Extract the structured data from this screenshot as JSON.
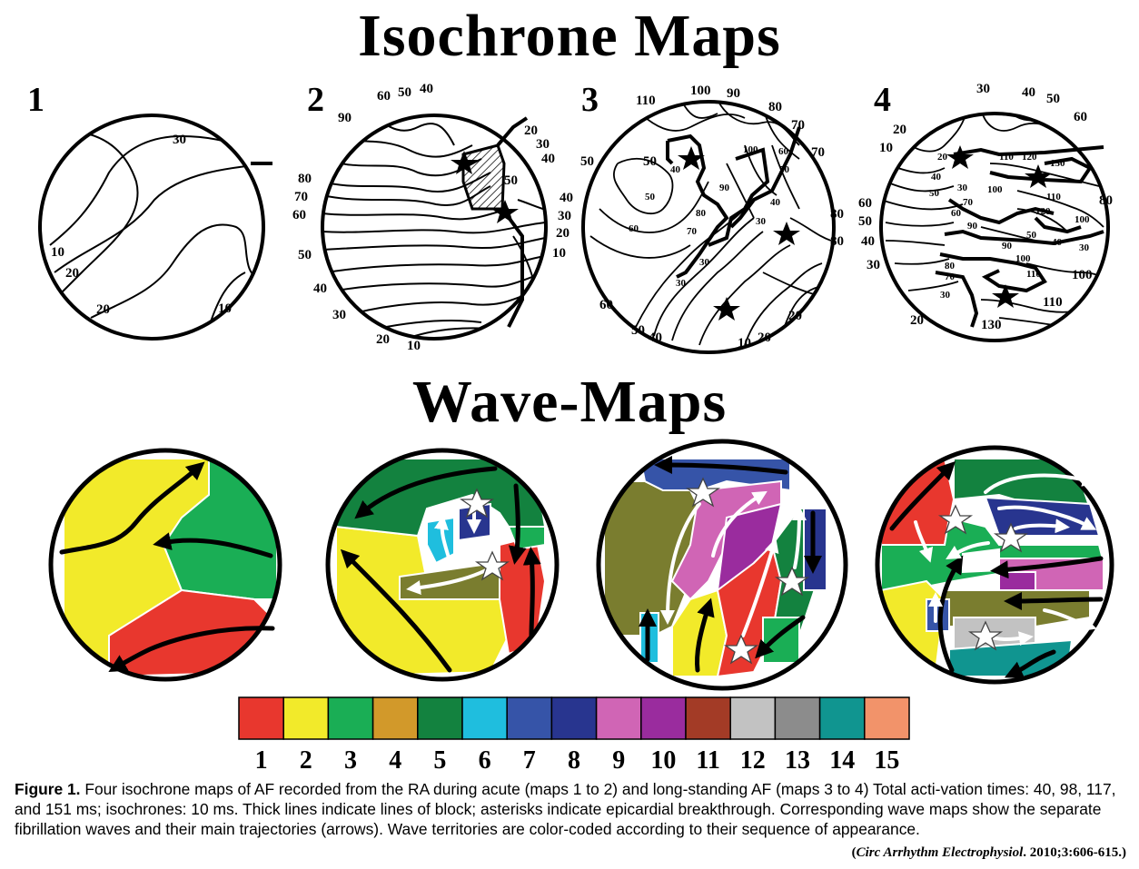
{
  "titles": {
    "isochrone": "Isochrone Maps",
    "wave": "Wave-Maps"
  },
  "isochrone_maps": [
    {
      "number": "1",
      "labels": [
        "30",
        "10",
        "20",
        "20",
        "10"
      ]
    },
    {
      "number": "2",
      "labels": [
        "60",
        "50",
        "40",
        "90",
        "20",
        "30",
        "40",
        "80",
        "70",
        "60",
        "50",
        "50",
        "40",
        "30",
        "40",
        "30",
        "20",
        "10",
        "20",
        "10"
      ]
    },
    {
      "number": "3",
      "labels": [
        "110",
        "100",
        "90",
        "80",
        "70",
        "70",
        "50",
        "50",
        "40",
        "50",
        "60",
        "90",
        "80",
        "70",
        "100",
        "60",
        "50",
        "40",
        "30",
        "80",
        "80",
        "30",
        "30",
        "60",
        "50",
        "40",
        "10",
        "20",
        "20"
      ]
    },
    {
      "number": "4",
      "labels": [
        "30",
        "40",
        "50",
        "60",
        "20",
        "10",
        "20",
        "40",
        "50",
        "30",
        "110",
        "120",
        "130",
        "100",
        "60",
        "70",
        "90",
        "120",
        "110",
        "100",
        "80",
        "60",
        "50",
        "40",
        "30",
        "50",
        "40",
        "90",
        "30",
        "100",
        "80",
        "70",
        "30",
        "110",
        "100",
        "110",
        "130",
        "20"
      ]
    }
  ],
  "legend": {
    "colors": [
      "#e8372e",
      "#f2ea2a",
      "#1aae55",
      "#d2992a",
      "#13823f",
      "#1fbede",
      "#3654a8",
      "#28358f",
      "#d065b5",
      "#9a2c9e",
      "#a33b26",
      "#c2c2c2",
      "#8c8c8c",
      "#109590",
      "#f2936a"
    ],
    "numbers": [
      "1",
      "2",
      "3",
      "4",
      "5",
      "6",
      "7",
      "8",
      "9",
      "10",
      "11",
      "12",
      "13",
      "14",
      "15"
    ]
  },
  "caption": {
    "label": "Figure 1.",
    "text": " Four isochrone maps of AF recorded from the RA during acute (maps 1 to 2) and long-standing AF (maps 3 to 4) Total acti-vation times: 40, 98, 117, and 151 ms; isochrones: 10 ms. Thick lines indicate lines of block; asterisks indicate epicardial breakthrough. Corresponding wave maps show the separate fibrillation waves and their main trajectories (arrows). Wave territories are color-coded according to their sequence of appearance.",
    "citation_open": "(",
    "citation_journal": "Circ Arrhythm Electrophysiol",
    "citation_rest": ". 2010;3:606-615.)"
  }
}
